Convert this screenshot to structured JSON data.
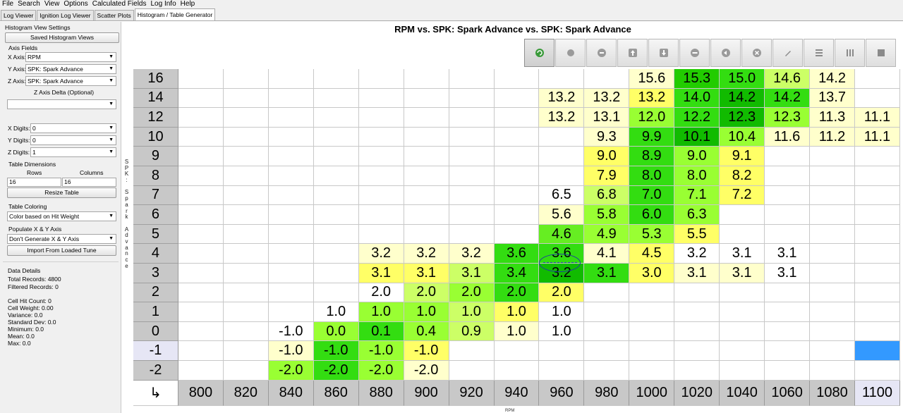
{
  "menu": [
    "File",
    "Search",
    "View",
    "Options",
    "Calculated Fields",
    "Log Info",
    "Help"
  ],
  "tabs": [
    {
      "label": "Log Viewer",
      "active": false
    },
    {
      "label": "Ignition Log Viewer",
      "active": false
    },
    {
      "label": "Scatter Plots",
      "active": false
    },
    {
      "label": "Histogram / Table Generator",
      "active": true
    }
  ],
  "left": {
    "section_title": "Histogram View Settings",
    "saved_views_button": "Saved Histogram Views",
    "axis_fields_label": "Axis Fields",
    "x_axis_label": "X Axis:",
    "x_axis_value": "RPM",
    "y_axis_label": "Y Axis:",
    "y_axis_value": "SPK: Spark Advance",
    "z_axis_label": "Z Axis:",
    "z_axis_value": "SPK: Spark Advance",
    "z_delta_label": "Z Axis Delta (Optional)",
    "z_delta_value": "",
    "x_digits_label": "X Digits:",
    "x_digits_value": "0",
    "y_digits_label": "Y Digits:",
    "y_digits_value": "0",
    "z_digits_label": "Z Digits:",
    "z_digits_value": "1",
    "table_dims_label": "Table Dimensions",
    "rows_label": "Rows",
    "columns_label": "Columns",
    "rows_value": "16",
    "columns_value": "16",
    "resize_button": "Resize Table",
    "coloring_label": "Table Coloring",
    "coloring_value": "Color based on Hit Weight",
    "populate_label": "Populate X & Y Axis",
    "populate_value": "Don't Generate X & Y Axis",
    "import_button": "Import From Loaded Tune",
    "data_details_label": "Data Details",
    "total_records": "Total Records: 4800",
    "filtered_records": "Filtered Records: 0",
    "cell_hit_count": "Cell Hit Count: 0",
    "cell_weight": "Cell Weight: 0.00",
    "variance": "Variance: 0.0",
    "std_dev": "Standard Dev: 0.0",
    "minimum": "Minimum: 0.0",
    "mean": "Mean: 0.0",
    "max": "Max: 0.0"
  },
  "y_axis_vertical_label": "SPK: Spark Advance",
  "title": "RPM vs. SPK: Spark Advance vs. SPK: Spark Advance",
  "x_axis_title": "RPM",
  "corner_glyph": "↳",
  "toolbar_icons": [
    "refresh-icon",
    "circle-icon",
    "minus-circle-icon",
    "arrow-up-icon",
    "arrow-down-icon",
    "minus-icon",
    "arrow-left-icon",
    "close-circle-icon",
    "pencil-icon",
    "rows-icon",
    "columns-icon",
    "square-icon"
  ],
  "colors": {
    "light_yellow": "#ffffcc",
    "yellow": "#ffff66",
    "yellow_green": "#ccff66",
    "light_green": "#99ff33",
    "green": "#66ee22",
    "mid_green": "#33dd11",
    "bright_green": "#22cc00",
    "dark_green": "#11bb00",
    "select_blue": "#3399ff",
    "axis_gray": "#c8c8c8"
  },
  "table": {
    "x_values": [
      "800",
      "820",
      "840",
      "860",
      "880",
      "900",
      "920",
      "940",
      "960",
      "980",
      "1000",
      "1020",
      "1040",
      "1060",
      "1080",
      "1100"
    ],
    "rows": [
      {
        "y": "16",
        "cells": [
          "",
          "",
          "",
          "",
          "",
          "",
          "",
          "",
          "",
          "",
          "15.6",
          "15.3",
          "15.0",
          "14.6",
          "14.2",
          ""
        ],
        "colors": [
          "",
          "",
          "",
          "",
          "",
          "",
          "",
          "",
          "",
          "",
          "light_yellow",
          "bright_green",
          "mid_green",
          "yellow_green",
          "light_yellow",
          ""
        ]
      },
      {
        "y": "14",
        "cells": [
          "",
          "",
          "",
          "",
          "",
          "",
          "",
          "",
          "13.2",
          "13.2",
          "13.2",
          "14.0",
          "14.2",
          "14.2",
          "13.7",
          ""
        ],
        "colors": [
          "",
          "",
          "",
          "",
          "",
          "",
          "",
          "",
          "light_yellow",
          "light_yellow",
          "yellow",
          "mid_green",
          "dark_green",
          "mid_green",
          "light_yellow",
          ""
        ]
      },
      {
        "y": "12",
        "cells": [
          "",
          "",
          "",
          "",
          "",
          "",
          "",
          "",
          "13.2",
          "13.1",
          "12.0",
          "12.2",
          "12.3",
          "12.3",
          "11.3",
          "11.1"
        ],
        "colors": [
          "",
          "",
          "",
          "",
          "",
          "",
          "",
          "",
          "light_yellow",
          "light_yellow",
          "light_green",
          "mid_green",
          "dark_green",
          "light_green",
          "light_yellow",
          "light_yellow"
        ]
      },
      {
        "y": "10",
        "cells": [
          "",
          "",
          "",
          "",
          "",
          "",
          "",
          "",
          "",
          "9.3",
          "9.9",
          "10.1",
          "10.4",
          "11.6",
          "11.2",
          "11.1"
        ],
        "colors": [
          "",
          "",
          "",
          "",
          "",
          "",
          "",
          "",
          "",
          "light_yellow",
          "mid_green",
          "dark_green",
          "light_green",
          "light_yellow",
          "light_yellow",
          "light_yellow"
        ]
      },
      {
        "y": "9",
        "cells": [
          "",
          "",
          "",
          "",
          "",
          "",
          "",
          "",
          "",
          "9.0",
          "8.9",
          "9.0",
          "9.1",
          "",
          "",
          ""
        ],
        "colors": [
          "",
          "",
          "",
          "",
          "",
          "",
          "",
          "",
          "",
          "yellow",
          "mid_green",
          "light_green",
          "yellow",
          "",
          "",
          ""
        ]
      },
      {
        "y": "8",
        "cells": [
          "",
          "",
          "",
          "",
          "",
          "",
          "",
          "",
          "",
          "7.9",
          "8.0",
          "8.0",
          "8.2",
          "",
          "",
          ""
        ],
        "colors": [
          "",
          "",
          "",
          "",
          "",
          "",
          "",
          "",
          "",
          "yellow",
          "mid_green",
          "light_green",
          "yellow",
          "",
          "",
          ""
        ]
      },
      {
        "y": "7",
        "cells": [
          "",
          "",
          "",
          "",
          "",
          "",
          "",
          "",
          "6.5",
          "6.8",
          "7.0",
          "7.1",
          "7.2",
          "",
          "",
          ""
        ],
        "colors": [
          "",
          "",
          "",
          "",
          "",
          "",
          "",
          "",
          "",
          "yellow_green",
          "mid_green",
          "light_green",
          "yellow",
          "",
          "",
          ""
        ]
      },
      {
        "y": "6",
        "cells": [
          "",
          "",
          "",
          "",
          "",
          "",
          "",
          "",
          "5.6",
          "5.8",
          "6.0",
          "6.3",
          "",
          "",
          "",
          ""
        ],
        "colors": [
          "",
          "",
          "",
          "",
          "",
          "",
          "",
          "",
          "light_yellow",
          "light_green",
          "mid_green",
          "light_green",
          "",
          "",
          "",
          ""
        ]
      },
      {
        "y": "5",
        "cells": [
          "",
          "",
          "",
          "",
          "",
          "",
          "",
          "",
          "4.6",
          "4.9",
          "5.3",
          "5.5",
          "",
          "",
          "",
          ""
        ],
        "colors": [
          "",
          "",
          "",
          "",
          "",
          "",
          "",
          "",
          "green",
          "light_green",
          "light_green",
          "yellow",
          "",
          "",
          "",
          ""
        ]
      },
      {
        "y": "4",
        "cells": [
          "",
          "",
          "",
          "",
          "3.2",
          "3.2",
          "3.2",
          "3.6",
          "3.6",
          "4.1",
          "4.5",
          "3.2",
          "3.1",
          "3.1",
          "",
          ""
        ],
        "colors": [
          "",
          "",
          "",
          "",
          "light_yellow",
          "light_yellow",
          "light_yellow",
          "mid_green",
          "mid_green",
          "light_yellow",
          "yellow",
          "",
          "",
          "",
          "",
          ""
        ]
      },
      {
        "y": "3",
        "cells": [
          "",
          "",
          "",
          "",
          "3.1",
          "3.1",
          "3.1",
          "3.4",
          "3.2",
          "3.1",
          "3.0",
          "3.1",
          "3.1",
          "3.1",
          "",
          ""
        ],
        "colors": [
          "",
          "",
          "",
          "",
          "yellow",
          "yellow",
          "yellow_green",
          "mid_green",
          "dark_green",
          "mid_green",
          "yellow",
          "light_yellow",
          "light_yellow",
          "",
          "",
          ""
        ]
      },
      {
        "y": "2",
        "cells": [
          "",
          "",
          "",
          "",
          "2.0",
          "2.0",
          "2.0",
          "2.0",
          "2.0",
          "",
          "",
          "",
          "",
          "",
          "",
          ""
        ],
        "colors": [
          "",
          "",
          "",
          "",
          "",
          "yellow_green",
          "light_green",
          "mid_green",
          "yellow",
          "",
          "",
          "",
          "",
          "",
          "",
          ""
        ]
      },
      {
        "y": "1",
        "cells": [
          "",
          "",
          "",
          "1.0",
          "1.0",
          "1.0",
          "1.0",
          "1.0",
          "1.0",
          "",
          "",
          "",
          "",
          "",
          "",
          ""
        ],
        "colors": [
          "",
          "",
          "",
          "",
          "light_green",
          "light_green",
          "yellow_green",
          "yellow",
          "",
          "",
          "",
          "",
          "",
          "",
          "",
          ""
        ]
      },
      {
        "y": "0",
        "cells": [
          "",
          "",
          "-1.0",
          "0.0",
          "0.1",
          "0.4",
          "0.9",
          "1.0",
          "1.0",
          "",
          "",
          "",
          "",
          "",
          "",
          ""
        ],
        "colors": [
          "",
          "",
          "",
          "light_green",
          "mid_green",
          "light_green",
          "yellow_green",
          "light_yellow",
          "",
          "",
          "",
          "",
          "",
          "",
          "",
          ""
        ]
      },
      {
        "y": "-1",
        "cells": [
          "",
          "",
          "-1.0",
          "-1.0",
          "-1.0",
          "-1.0",
          "",
          "",
          "",
          "",
          "",
          "",
          "",
          "",
          "",
          ""
        ],
        "colors": [
          "",
          "",
          "light_yellow",
          "mid_green",
          "light_green",
          "yellow",
          "",
          "",
          "",
          "",
          "",
          "",
          "",
          "",
          "",
          "select_blue"
        ]
      },
      {
        "y": "-2",
        "cells": [
          "",
          "",
          "-2.0",
          "-2.0",
          "-2.0",
          "-2.0",
          "",
          "",
          "",
          "",
          "",
          "",
          "",
          "",
          "",
          ""
        ],
        "colors": [
          "",
          "",
          "light_green",
          "mid_green",
          "light_green",
          "light_yellow",
          "",
          "",
          "",
          "",
          "",
          "",
          "",
          "",
          "",
          ""
        ]
      }
    ]
  }
}
